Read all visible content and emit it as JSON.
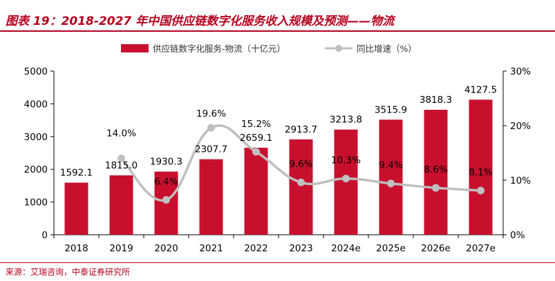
{
  "figure": {
    "title": "图表 19：2018-2027 年中国供应链数字化服务收入规模及预测——物流",
    "source": "来源：艾瑞咨询，中泰证券研究所"
  },
  "colors": {
    "accent": "#b5001e",
    "bar": "#c8102e",
    "line": "#bfbfbf"
  },
  "chart_data": {
    "type": "bar",
    "categories": [
      "2018",
      "2019",
      "2020",
      "2021",
      "2022",
      "2023",
      "2024e",
      "2025e",
      "2026e",
      "2027e"
    ],
    "series": [
      {
        "name": "供应链数字化服务-物流（十亿元）",
        "type": "bar",
        "axis": "left",
        "values": [
          1592.1,
          1815.0,
          1930.3,
          2307.7,
          2659.1,
          2913.7,
          3213.8,
          3515.9,
          3818.3,
          4127.5
        ],
        "labels": [
          "1592.1",
          "1815.0",
          "1930.3",
          "2307.7",
          "2659.1",
          "2913.7",
          "3213.8",
          "3515.9",
          "3818.3",
          "4127.5"
        ]
      },
      {
        "name": "同比增速（%）",
        "type": "line",
        "axis": "right",
        "values": [
          null,
          14.0,
          6.4,
          19.6,
          15.2,
          9.6,
          10.3,
          9.4,
          8.6,
          8.1
        ],
        "labels": [
          "",
          "14.0%",
          "6.4%",
          "19.6%",
          "15.2%",
          "9.6%",
          "10.3%",
          "9.4%",
          "8.6%",
          "8.1%"
        ]
      }
    ],
    "y_left": {
      "min": 0,
      "max": 5000,
      "ticks": [
        "0",
        "1000",
        "2000",
        "3000",
        "4000",
        "5000"
      ]
    },
    "y_right": {
      "min": 0,
      "max": 30,
      "ticks": [
        "0%",
        "10%",
        "20%",
        "30%"
      ]
    },
    "legend_position": "top-center",
    "grid": false
  }
}
